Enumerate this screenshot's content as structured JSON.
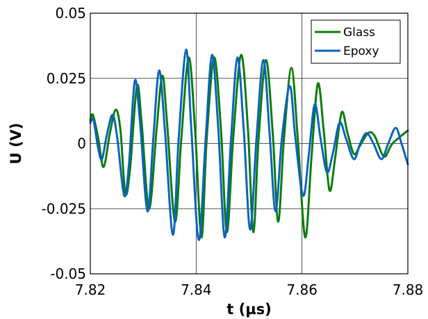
{
  "chart_data": {
    "type": "line",
    "xlabel": "t (µs)",
    "ylabel": "U (V)",
    "xlim": [
      7.82,
      7.88
    ],
    "ylim": [
      -0.05,
      0.05
    ],
    "x_ticks": [
      "7.82",
      "7.84",
      "7.86",
      "7.88"
    ],
    "x_tick_values": [
      7.82,
      7.84,
      7.86,
      7.88
    ],
    "y_ticks": [
      "0.05",
      "0.025",
      "0",
      "-0.025",
      "-0.05"
    ],
    "y_tick_values": [
      0.05,
      0.025,
      0,
      -0.025,
      -0.05
    ],
    "grid": true,
    "legend_position": "top-right",
    "series": [
      {
        "name": "Glass",
        "color": "#0a7d0a",
        "points": [
          [
            7.82,
            0.009
          ],
          [
            7.8205,
            0.011
          ],
          [
            7.8215,
            0.002
          ],
          [
            7.8225,
            -0.009
          ],
          [
            7.8237,
            0.004
          ],
          [
            7.8248,
            0.013
          ],
          [
            7.8257,
            0.005
          ],
          [
            7.8266,
            -0.019
          ],
          [
            7.8275,
            -0.01
          ],
          [
            7.8288,
            0.022
          ],
          [
            7.8297,
            0.008
          ],
          [
            7.8311,
            -0.025
          ],
          [
            7.8325,
            0.005
          ],
          [
            7.8336,
            0.026
          ],
          [
            7.8345,
            0.008
          ],
          [
            7.836,
            -0.03
          ],
          [
            7.8372,
            0.002
          ],
          [
            7.8386,
            0.033
          ],
          [
            7.8398,
            0.005
          ],
          [
            7.841,
            -0.036
          ],
          [
            7.842,
            0.002
          ],
          [
            7.8434,
            0.033
          ],
          [
            7.8447,
            0.005
          ],
          [
            7.8458,
            -0.034
          ],
          [
            7.847,
            0.002
          ],
          [
            7.8485,
            0.034
          ],
          [
            7.8498,
            0.005
          ],
          [
            7.8508,
            -0.034
          ],
          [
            7.8518,
            0.002
          ],
          [
            7.8532,
            0.032
          ],
          [
            7.8545,
            0.003
          ],
          [
            7.8555,
            -0.03
          ],
          [
            7.8566,
            0.002
          ],
          [
            7.858,
            0.029
          ],
          [
            7.8592,
            0.002
          ],
          [
            7.8606,
            -0.036
          ],
          [
            7.8618,
            -0.005
          ],
          [
            7.863,
            0.023
          ],
          [
            7.8641,
            0.005
          ],
          [
            7.8652,
            -0.018
          ],
          [
            7.8663,
            -0.005
          ],
          [
            7.8675,
            0.012
          ],
          [
            7.8686,
            0.004
          ],
          [
            7.8698,
            -0.004
          ],
          [
            7.8709,
            -0.001
          ],
          [
            7.8725,
            0.004
          ],
          [
            7.8737,
            0.003
          ],
          [
            7.8755,
            -0.005
          ],
          [
            7.8771,
            0.0
          ],
          [
            7.88,
            0.005
          ]
        ]
      },
      {
        "name": "Epoxy",
        "color": "#0a62c0",
        "points": [
          [
            7.82,
            0.008
          ],
          [
            7.8206,
            0.009
          ],
          [
            7.8215,
            -0.002
          ],
          [
            7.8222,
            -0.006
          ],
          [
            7.8231,
            0.003
          ],
          [
            7.8242,
            0.011
          ],
          [
            7.8251,
            0.002
          ],
          [
            7.8264,
            -0.02
          ],
          [
            7.8273,
            -0.008
          ],
          [
            7.8284,
            0.024
          ],
          [
            7.8294,
            0.008
          ],
          [
            7.8308,
            -0.026
          ],
          [
            7.8319,
            0.002
          ],
          [
            7.833,
            0.028
          ],
          [
            7.8341,
            0.005
          ],
          [
            7.8356,
            -0.035
          ],
          [
            7.8367,
            0.002
          ],
          [
            7.8381,
            0.036
          ],
          [
            7.8391,
            0.005
          ],
          [
            7.8405,
            -0.037
          ],
          [
            7.8418,
            0.002
          ],
          [
            7.843,
            0.034
          ],
          [
            7.8442,
            0.005
          ],
          [
            7.8454,
            -0.036
          ],
          [
            7.8466,
            0.002
          ],
          [
            7.8478,
            0.033
          ],
          [
            7.849,
            0.005
          ],
          [
            7.8502,
            -0.033
          ],
          [
            7.8514,
            0.002
          ],
          [
            7.8527,
            0.032
          ],
          [
            7.8539,
            0.003
          ],
          [
            7.855,
            -0.026
          ],
          [
            7.8562,
            0.002
          ],
          [
            7.8577,
            0.022
          ],
          [
            7.8587,
            0.003
          ],
          [
            7.8602,
            -0.02
          ],
          [
            7.8613,
            -0.004
          ],
          [
            7.8624,
            0.015
          ],
          [
            7.8635,
            0.002
          ],
          [
            7.8647,
            -0.011
          ],
          [
            7.8658,
            -0.004
          ],
          [
            7.8671,
            0.008
          ],
          [
            7.8683,
            0.002
          ],
          [
            7.8698,
            -0.006
          ],
          [
            7.871,
            0.0
          ],
          [
            7.8722,
            0.004
          ],
          [
            7.8735,
            0.0
          ],
          [
            7.875,
            -0.006
          ],
          [
            7.8763,
            0.0
          ],
          [
            7.8777,
            0.006
          ],
          [
            7.8788,
            0.0
          ],
          [
            7.88,
            -0.008
          ]
        ]
      }
    ]
  }
}
